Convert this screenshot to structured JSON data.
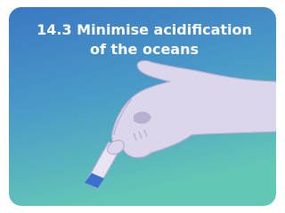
{
  "title_lines": [
    "14.3 Minimise acidification",
    "of the oceans"
  ]
}
